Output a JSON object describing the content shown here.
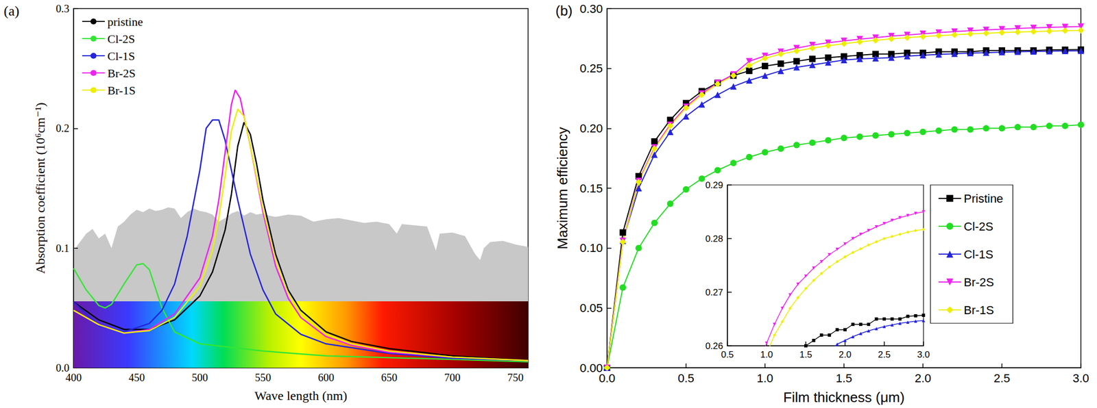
{
  "chart_data": [
    {
      "type": "line",
      "title": "(a)",
      "x_label": "Wave length (nm)",
      "y_label": "Absorption coefficient (10⁶cm⁻¹)",
      "xlim": [
        400,
        760
      ],
      "xticks": [
        400,
        450,
        500,
        550,
        600,
        650,
        700,
        750
      ],
      "ylim": [
        0,
        0.3
      ],
      "yticks": [
        {
          "value": 0,
          "label": "0.0"
        },
        {
          "value": 0.1,
          "label": "0.1"
        },
        {
          "value": 0.2,
          "label": "0.2"
        },
        {
          "value": 0.3,
          "label": "0.3"
        }
      ],
      "grid": false,
      "legend": "upper left",
      "background_area": {
        "color": "#c8c8c8",
        "x": [
          400,
          405,
          410,
          415,
          420,
          425,
          430,
          435,
          440,
          445,
          450,
          455,
          460,
          465,
          470,
          475,
          480,
          485,
          490,
          495,
          500,
          505,
          510,
          515,
          520,
          525,
          530,
          535,
          540,
          545,
          550,
          555,
          560,
          570,
          580,
          590,
          600,
          610,
          620,
          630,
          640,
          650,
          656,
          660,
          670,
          680,
          687,
          690,
          700,
          710,
          718,
          722,
          725,
          730,
          740,
          750,
          760
        ],
        "values": [
          0.098,
          0.105,
          0.112,
          0.116,
          0.108,
          0.112,
          0.1,
          0.118,
          0.122,
          0.128,
          0.132,
          0.13,
          0.133,
          0.131,
          0.132,
          0.134,
          0.133,
          0.125,
          0.13,
          0.133,
          0.131,
          0.13,
          0.128,
          0.122,
          0.125,
          0.129,
          0.131,
          0.127,
          0.13,
          0.128,
          0.129,
          0.127,
          0.126,
          0.128,
          0.127,
          0.122,
          0.124,
          0.125,
          0.123,
          0.121,
          0.122,
          0.12,
          0.112,
          0.12,
          0.119,
          0.118,
          0.098,
          0.112,
          0.113,
          0.11,
          0.095,
          0.09,
          0.1,
          0.105,
          0.106,
          0.103,
          0.101
        ]
      },
      "series": [
        {
          "name": "pristine",
          "color": "#000000",
          "marker": "none",
          "x": [
            400,
            420,
            440,
            460,
            480,
            500,
            510,
            520,
            525,
            530,
            535,
            540,
            545,
            550,
            560,
            570,
            580,
            600,
            620,
            650,
            700,
            760
          ],
          "values": [
            0.055,
            0.04,
            0.032,
            0.032,
            0.04,
            0.06,
            0.08,
            0.115,
            0.145,
            0.185,
            0.205,
            0.195,
            0.17,
            0.14,
            0.095,
            0.065,
            0.048,
            0.03,
            0.022,
            0.016,
            0.01,
            0.006
          ]
        },
        {
          "name": "Cl-2S",
          "color": "#33e633",
          "marker": "none",
          "x": [
            400,
            410,
            420,
            425,
            430,
            440,
            450,
            455,
            460,
            470,
            480,
            500,
            550,
            600,
            700,
            760
          ],
          "values": [
            0.083,
            0.065,
            0.052,
            0.05,
            0.053,
            0.07,
            0.086,
            0.087,
            0.082,
            0.05,
            0.03,
            0.02,
            0.014,
            0.01,
            0.007,
            0.005
          ]
        },
        {
          "name": "Cl-1S",
          "color": "#2424dd",
          "marker": "none",
          "x": [
            400,
            420,
            440,
            460,
            470,
            480,
            490,
            500,
            505,
            510,
            515,
            520,
            530,
            540,
            550,
            560,
            580,
            600,
            650,
            700,
            760
          ],
          "values": [
            0.055,
            0.035,
            0.03,
            0.037,
            0.048,
            0.07,
            0.11,
            0.165,
            0.2,
            0.207,
            0.207,
            0.19,
            0.14,
            0.095,
            0.065,
            0.045,
            0.028,
            0.02,
            0.012,
            0.008,
            0.006
          ]
        },
        {
          "name": "Br-2S",
          "color": "#ee22ee",
          "marker": "none",
          "x": [
            400,
            420,
            440,
            460,
            480,
            500,
            510,
            515,
            520,
            525,
            528,
            532,
            540,
            550,
            560,
            570,
            580,
            600,
            620,
            650,
            700,
            760
          ],
          "values": [
            0.048,
            0.036,
            0.029,
            0.032,
            0.045,
            0.075,
            0.11,
            0.14,
            0.18,
            0.22,
            0.232,
            0.225,
            0.185,
            0.13,
            0.085,
            0.058,
            0.042,
            0.026,
            0.019,
            0.013,
            0.009,
            0.006
          ]
        },
        {
          "name": "Br-1S",
          "color": "#eeee00",
          "marker": "none",
          "x": [
            400,
            420,
            440,
            460,
            480,
            500,
            510,
            515,
            520,
            525,
            530,
            535,
            540,
            550,
            560,
            570,
            580,
            600,
            620,
            650,
            700,
            760
          ],
          "values": [
            0.048,
            0.036,
            0.029,
            0.031,
            0.042,
            0.068,
            0.098,
            0.125,
            0.16,
            0.198,
            0.216,
            0.21,
            0.185,
            0.133,
            0.09,
            0.062,
            0.045,
            0.028,
            0.02,
            0.014,
            0.009,
            0.006
          ]
        }
      ]
    },
    {
      "type": "line",
      "title": "(b)",
      "x_label": "Film thickness (μm)",
      "y_label": "Maximum efficiency",
      "xlim": [
        0,
        3
      ],
      "xticks": [
        {
          "value": 0,
          "label": "0.0"
        },
        {
          "value": 0.5,
          "label": "0.5"
        },
        {
          "value": 1,
          "label": "1.0"
        },
        {
          "value": 1.5,
          "label": "1.5"
        },
        {
          "value": 2,
          "label": "2.0"
        },
        {
          "value": 2.5,
          "label": "2.5"
        },
        {
          "value": 3,
          "label": "3.0"
        }
      ],
      "ylim": [
        0,
        0.3
      ],
      "yticks": [
        {
          "value": 0,
          "label": "0.00"
        },
        {
          "value": 0.05,
          "label": "0.05"
        },
        {
          "value": 0.1,
          "label": "0.10"
        },
        {
          "value": 0.15,
          "label": "0.15"
        },
        {
          "value": 0.2,
          "label": "0.20"
        },
        {
          "value": 0.25,
          "label": "0.25"
        },
        {
          "value": 0.3,
          "label": "0.30"
        }
      ],
      "grid": false,
      "legend": "lower right",
      "inset": {
        "xlim": [
          0.5,
          3
        ],
        "xticks": [
          {
            "value": 0.5,
            "label": "0.5"
          },
          {
            "value": 1,
            "label": "1.0"
          },
          {
            "value": 1.5,
            "label": "1.5"
          },
          {
            "value": 2,
            "label": "2.0"
          },
          {
            "value": 2.5,
            "label": "2.5"
          },
          {
            "value": 3,
            "label": "3.0"
          }
        ],
        "ylim": [
          0.26,
          0.29
        ],
        "yticks": [
          0.26,
          0.27,
          0.28,
          0.29
        ]
      },
      "x": [
        0,
        0.1,
        0.2,
        0.3,
        0.4,
        0.5,
        0.6,
        0.7,
        0.8,
        0.9,
        1,
        1.1,
        1.2,
        1.3,
        1.4,
        1.5,
        1.6,
        1.7,
        1.8,
        1.9,
        2,
        2.1,
        2.2,
        2.3,
        2.4,
        2.5,
        2.6,
        2.7,
        2.8,
        2.9,
        3
      ],
      "series": [
        {
          "name": "Pristine",
          "color": "#000000",
          "marker": "square",
          "values": [
            0,
            0.113,
            0.16,
            0.189,
            0.207,
            0.221,
            0.231,
            0.238,
            0.244,
            0.248,
            0.252,
            0.254,
            0.256,
            0.258,
            0.259,
            0.26,
            0.261,
            0.262,
            0.262,
            0.263,
            0.263,
            0.264,
            0.264,
            0.264,
            0.265,
            0.265,
            0.265,
            0.265,
            0.2655,
            0.2656,
            0.2657
          ]
        },
        {
          "name": "Cl-2S",
          "color": "#22dd22",
          "marker": "circle",
          "values": [
            0,
            0.067,
            0.1,
            0.121,
            0.137,
            0.149,
            0.158,
            0.165,
            0.171,
            0.176,
            0.18,
            0.183,
            0.186,
            0.188,
            0.19,
            0.192,
            0.193,
            0.194,
            0.195,
            0.196,
            0.197,
            0.198,
            0.199,
            0.199,
            0.2,
            0.2,
            0.201,
            0.201,
            0.202,
            0.202,
            0.203
          ]
        },
        {
          "name": "Cl-1S",
          "color": "#2424dd",
          "marker": "triangle",
          "values": [
            0,
            0.106,
            0.15,
            0.178,
            0.197,
            0.21,
            0.22,
            0.228,
            0.235,
            0.24,
            0.244,
            0.248,
            0.251,
            0.253,
            0.255,
            0.257,
            0.258,
            0.2585,
            0.259,
            0.2603,
            0.261,
            0.2617,
            0.2623,
            0.2628,
            0.2632,
            0.2636,
            0.2639,
            0.2642,
            0.2644,
            0.2646,
            0.2647
          ]
        },
        {
          "name": "Br-2S",
          "color": "#ee22ee",
          "marker": "triangle_down",
          "values": [
            0,
            0.106,
            0.156,
            0.184,
            0.203,
            0.218,
            0.229,
            0.238,
            0.245,
            0.256,
            0.2605,
            0.264,
            0.267,
            0.2695,
            0.2715,
            0.273,
            0.2745,
            0.2757,
            0.277,
            0.278,
            0.279,
            0.28,
            0.2808,
            0.2815,
            0.2822,
            0.2828,
            0.2834,
            0.2839,
            0.2843,
            0.2847,
            0.285
          ]
        },
        {
          "name": "Br-1S",
          "color": "#eeee00",
          "marker": "diamond",
          "values": [
            0,
            0.105,
            0.155,
            0.183,
            0.202,
            0.217,
            0.228,
            0.237,
            0.244,
            0.2525,
            0.2585,
            0.262,
            0.2645,
            0.267,
            0.269,
            0.2707,
            0.2722,
            0.2735,
            0.2747,
            0.2757,
            0.2766,
            0.2774,
            0.2781,
            0.2788,
            0.2794,
            0.28,
            0.2804,
            0.2808,
            0.2812,
            0.2815,
            0.2817
          ]
        }
      ]
    }
  ]
}
